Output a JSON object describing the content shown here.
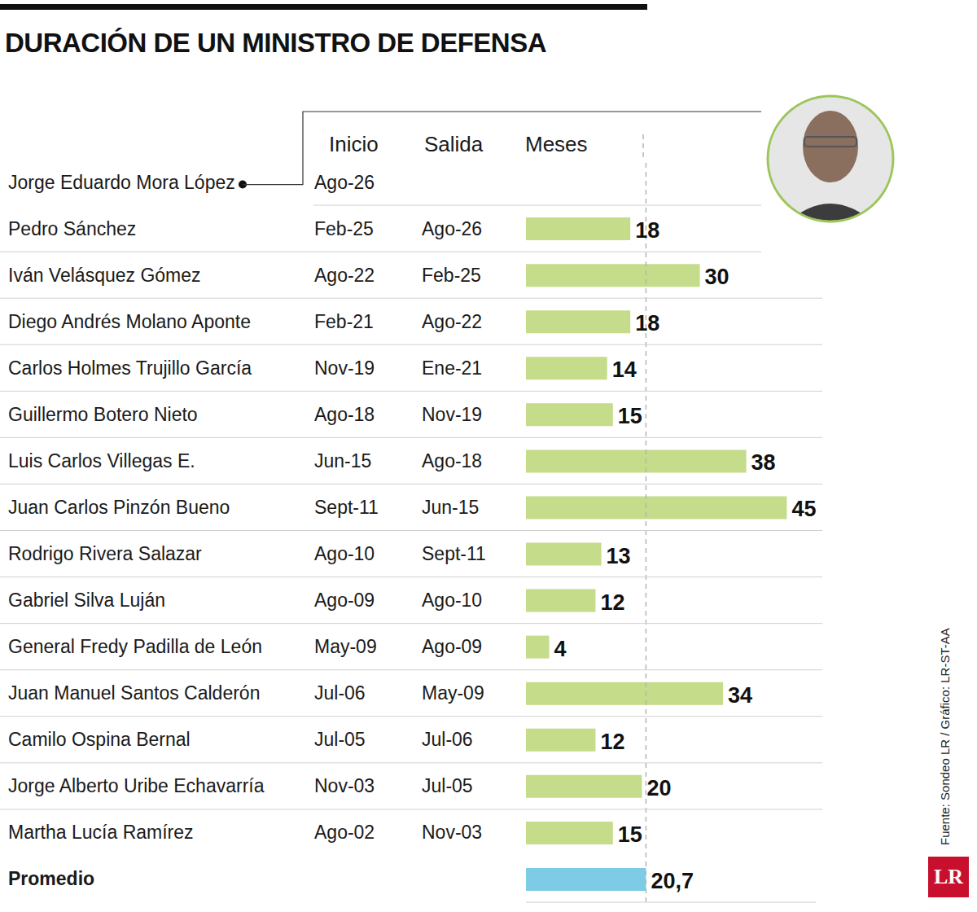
{
  "title": "DURACIÓN DE UN MINISTRO DE DEFENSA",
  "columns": [
    "Inicio",
    "Salida",
    "Meses"
  ],
  "source": "Fuente: Sondeo LR / Gráfico: LR-ST-AA",
  "logo": "LR",
  "chart_data": {
    "type": "bar",
    "orientation": "horizontal",
    "categories": [
      "Jorge Eduardo Mora López",
      "Pedro Sánchez",
      "Iván Velásquez Gómez",
      "Diego Andrés Molano Aponte",
      "Carlos Holmes Trujillo García",
      "Guillermo Botero Nieto",
      "Luis Carlos Villegas E.",
      "Juan Carlos Pinzón Bueno",
      "Rodrigo Rivera Salazar",
      "Gabriel Silva Luján",
      "General Fredy Padilla de León",
      "Juan Manuel Santos Calderón",
      "Camilo Ospina Bernal",
      "Jorge Alberto Uribe Echavarría",
      "Martha Lucía Ramírez",
      "Promedio"
    ],
    "values": [
      null,
      18,
      30,
      18,
      14,
      15,
      38,
      45,
      13,
      12,
      4,
      34,
      12,
      20,
      15,
      20.7
    ],
    "value_labels": [
      null,
      "18",
      "30",
      "18",
      "14",
      "15",
      "38",
      "45",
      "13",
      "12",
      "4",
      "34",
      "12",
      "20",
      "15",
      "20,7"
    ],
    "start_dates": [
      "Ago-26",
      "Feb-25",
      "Ago-22",
      "Feb-21",
      "Nov-19",
      "Ago-18",
      "Jun-15",
      "Sept-11",
      "Ago-10",
      "Ago-09",
      "May-09",
      "Jul-06",
      "Jul-05",
      "Nov-03",
      "Ago-02",
      null
    ],
    "end_dates": [
      null,
      "Ago-26",
      "Feb-25",
      "Ago-22",
      "Ene-21",
      "Nov-19",
      "Ago-18",
      "Jun-15",
      "Sept-11",
      "Ago-10",
      "Ago-09",
      "May-09",
      "Jul-06",
      "Jul-05",
      "Nov-03",
      null
    ],
    "colors": [
      "#c5dc8a",
      "#c5dc8a",
      "#c5dc8a",
      "#c5dc8a",
      "#c5dc8a",
      "#c5dc8a",
      "#c5dc8a",
      "#c5dc8a",
      "#c5dc8a",
      "#c5dc8a",
      "#c5dc8a",
      "#c5dc8a",
      "#c5dc8a",
      "#c5dc8a",
      "#c5dc8a",
      "#7ecbe6"
    ],
    "data_labels": true,
    "tick_labels": false,
    "xlim": [
      0,
      50
    ]
  }
}
